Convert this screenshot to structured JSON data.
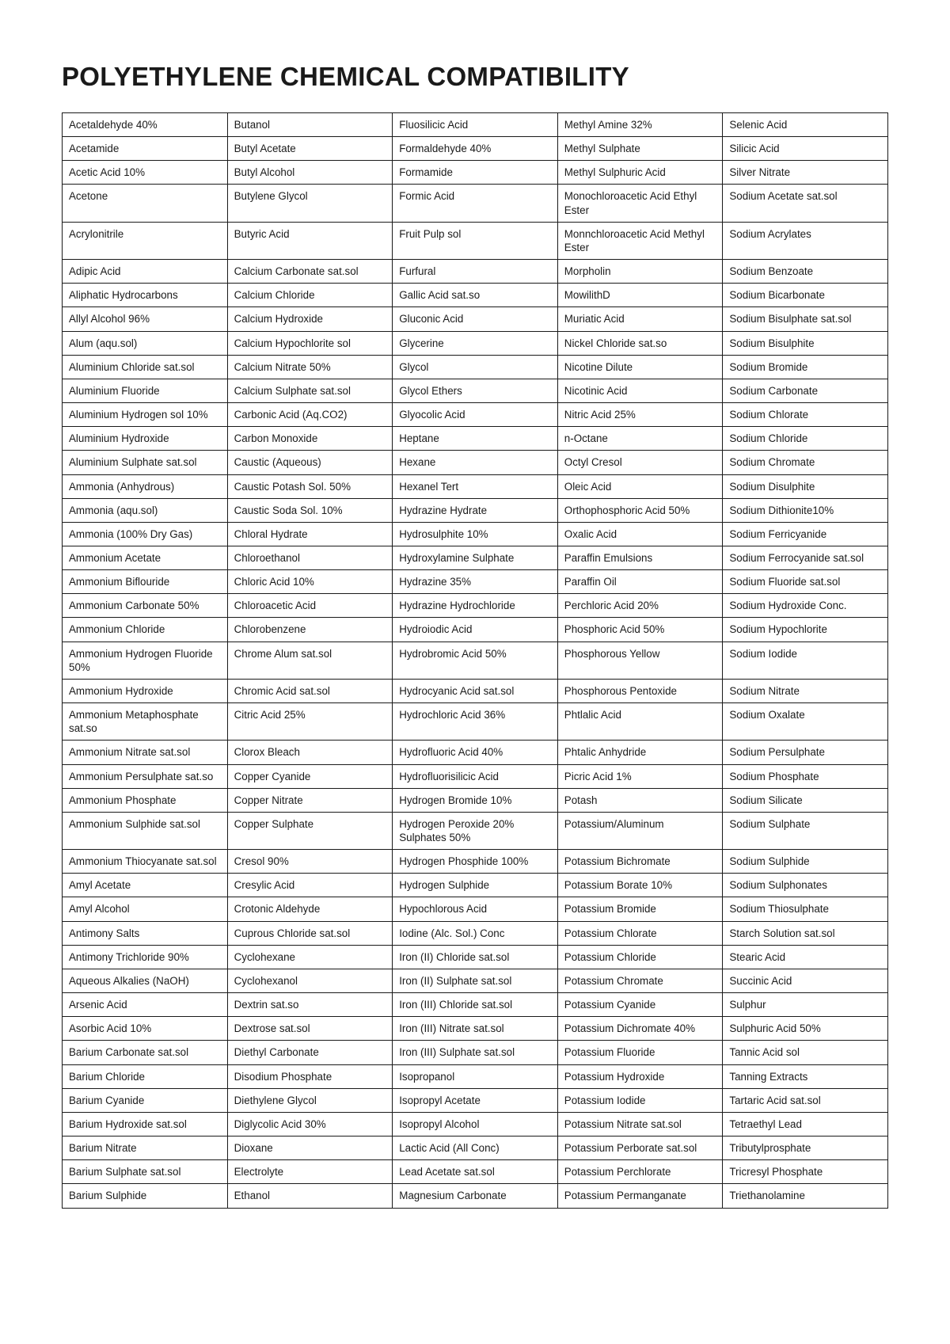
{
  "title": "POLYETHYLENE CHEMICAL COMPATIBILITY",
  "table": {
    "columns": 5,
    "column_widths_pct": [
      20,
      20,
      20,
      20,
      20
    ],
    "border_color": "#1a1a1a",
    "cell_font_size": 13.4,
    "text_color": "#1a1a1a",
    "rows": [
      [
        "Acetaldehyde 40%",
        "Butanol",
        "Fluosilicic Acid",
        "Methyl Amine 32%",
        "Selenic Acid"
      ],
      [
        "Acetamide",
        "Butyl Acetate",
        "Formaldehyde 40%",
        "Methyl Sulphate",
        "Silicic Acid"
      ],
      [
        "Acetic Acid 10%",
        "Butyl Alcohol",
        "Formamide",
        "Methyl Sulphuric Acid",
        "Silver Nitrate"
      ],
      [
        "Acetone",
        "Butylene Glycol",
        "Formic Acid",
        "Monochloroacetic Acid Ethyl Ester",
        "Sodium Acetate sat.sol"
      ],
      [
        "Acrylonitrile",
        "Butyric Acid",
        "Fruit Pulp sol",
        "Monnchloroacetic Acid Methyl Ester",
        "Sodium Acrylates"
      ],
      [
        "Adipic Acid",
        "Calcium Carbonate sat.sol",
        "Furfural",
        "Morpholin",
        "Sodium Benzoate"
      ],
      [
        "Aliphatic Hydrocarbons",
        "Calcium Chloride",
        "Gallic Acid sat.so",
        "MowilithD",
        "Sodium Bicarbonate"
      ],
      [
        "Allyl Alcohol 96%",
        "Calcium Hydroxide",
        "Gluconic Acid",
        "Muriatic Acid",
        "Sodium Bisulphate sat.sol"
      ],
      [
        "Alum (aqu.sol)",
        "Calcium Hypochlorite sol",
        "Glycerine",
        "Nickel Chloride sat.so",
        "Sodium Bisulphite"
      ],
      [
        "Aluminium Chloride sat.sol",
        "Calcium Nitrate 50%",
        "Glycol",
        "Nicotine Dilute",
        "Sodium Bromide"
      ],
      [
        "Aluminium Fluoride",
        "Calcium Sulphate sat.sol",
        "Glycol Ethers",
        "Nicotinic Acid",
        "Sodium Carbonate"
      ],
      [
        "Aluminium Hydrogen sol 10%",
        "Carbonic Acid (Aq.CO2)",
        "Glyocolic Acid",
        "Nitric Acid 25%",
        "Sodium Chlorate"
      ],
      [
        "Aluminium Hydroxide",
        "Carbon Monoxide",
        "Heptane",
        "n-Octane",
        "Sodium Chloride"
      ],
      [
        "Aluminium Sulphate sat.sol",
        "Caustic (Aqueous)",
        "Hexane",
        "Octyl Cresol",
        "Sodium Chromate"
      ],
      [
        "Ammonia (Anhydrous)",
        "Caustic Potash Sol. 50%",
        "Hexanel Tert",
        "Oleic Acid",
        "Sodium Disulphite"
      ],
      [
        "Ammonia (aqu.sol)",
        "Caustic Soda Sol. 10%",
        "Hydrazine Hydrate",
        "Orthophosphoric Acid 50%",
        "Sodium Dithionite10%"
      ],
      [
        "Ammonia (100% Dry Gas)",
        "Chloral Hydrate",
        "Hydrosulphite 10%",
        "Oxalic Acid",
        "Sodium Ferricyanide"
      ],
      [
        "Ammonium Acetate",
        "Chloroethanol",
        "Hydroxylamine Sulphate",
        "Paraffin Emulsions",
        "Sodium Ferrocyanide sat.sol"
      ],
      [
        "Ammonium Biflouride",
        "Chloric Acid 10%",
        "Hydrazine 35%",
        "Paraffin Oil",
        "Sodium Fluoride sat.sol"
      ],
      [
        "Ammonium Carbonate 50%",
        "Chloroacetic Acid",
        "Hydrazine Hydrochloride",
        "Perchloric Acid 20%",
        "Sodium Hydroxide Conc."
      ],
      [
        "Ammonium Chloride",
        "Chlorobenzene",
        "Hydroiodic Acid",
        "Phosphoric Acid 50%",
        "Sodium Hypochlorite"
      ],
      [
        "Ammonium Hydrogen Fluoride 50%",
        "Chrome Alum sat.sol",
        "Hydrobromic Acid 50%",
        "Phosphorous Yellow",
        "Sodium Iodide"
      ],
      [
        "Ammonium Hydroxide",
        "Chromic Acid sat.sol",
        "Hydrocyanic Acid sat.sol",
        "Phosphorous Pentoxide",
        "Sodium Nitrate"
      ],
      [
        "Ammonium Metaphosphate sat.so",
        "Citric Acid 25%",
        "Hydrochloric Acid 36%",
        "Phtlalic Acid",
        "Sodium Oxalate"
      ],
      [
        "Ammonium Nitrate sat.sol",
        "Clorox Bleach",
        "Hydrofluoric Acid 40%",
        "Phtalic Anhydride",
        "Sodium Persulphate"
      ],
      [
        "Ammonium Persulphate sat.so",
        "Copper Cyanide",
        "Hydrofluorisilicic Acid",
        "Picric Acid 1%",
        "Sodium Phosphate"
      ],
      [
        "Ammonium Phosphate",
        "Copper Nitrate",
        "Hydrogen Bromide 10%",
        "Potash",
        "Sodium Silicate"
      ],
      [
        "Ammonium Sulphide sat.sol",
        "Copper Sulphate",
        "Hydrogen Peroxide 20% Sulphates 50%",
        "Potassium/Aluminum",
        "Sodium Sulphate"
      ],
      [
        "Ammonium Thiocyanate sat.sol",
        "Cresol 90%",
        "Hydrogen Phosphide 100%",
        "Potassium Bichromate",
        "Sodium Sulphide"
      ],
      [
        "Amyl Acetate",
        "Cresylic Acid",
        "Hydrogen Sulphide",
        "Potassium Borate 10%",
        "Sodium Sulphonates"
      ],
      [
        "Amyl Alcohol",
        "Crotonic Aldehyde",
        "Hypochlorous Acid",
        "Potassium Bromide",
        "Sodium Thiosulphate"
      ],
      [
        "Antimony Salts",
        "Cuprous Chloride sat.sol",
        "Iodine (Alc. Sol.) Conc",
        "Potassium Chlorate",
        "Starch Solution sat.sol"
      ],
      [
        "Antimony Trichloride 90%",
        "Cyclohexane",
        "Iron (II) Chloride sat.sol",
        "Potassium Chloride",
        "Stearic Acid"
      ],
      [
        "Aqueous Alkalies (NaOH)",
        "Cyclohexanol",
        "Iron (II) Sulphate sat.sol",
        "Potassium Chromate",
        "Succinic Acid"
      ],
      [
        "Arsenic Acid",
        "Dextrin sat.so",
        "Iron (III) Chloride sat.sol",
        "Potassium Cyanide",
        "Sulphur"
      ],
      [
        "Asorbic Acid 10%",
        "Dextrose sat.sol",
        "Iron (III) Nitrate sat.sol",
        "Potassium Dichromate 40%",
        "Sulphuric Acid 50%"
      ],
      [
        "Barium Carbonate sat.sol",
        "Diethyl Carbonate",
        "Iron (III) Sulphate sat.sol",
        "Potassium Fluoride",
        "Tannic Acid sol"
      ],
      [
        "Barium Chloride",
        "Disodium Phosphate",
        "Isopropanol",
        "Potassium Hydroxide",
        "Tanning Extracts"
      ],
      [
        "Barium Cyanide",
        "Diethylene Glycol",
        "Isopropyl Acetate",
        "Potassium Iodide",
        "Tartaric Acid sat.sol"
      ],
      [
        "Barium Hydroxide sat.sol",
        "Diglycolic Acid 30%",
        "Isopropyl Alcohol",
        "Potassium Nitrate sat.sol",
        "Tetraethyl Lead"
      ],
      [
        "Barium Nitrate",
        "Dioxane",
        "Lactic Acid (All Conc)",
        "Potassium Perborate sat.sol",
        "Tributylprosphate"
      ],
      [
        "Barium Sulphate sat.sol",
        "Electrolyte",
        "Lead Acetate sat.sol",
        "Potassium Perchlorate",
        "Tricresyl Phosphate"
      ],
      [
        "Barium Sulphide",
        "Ethanol",
        "Magnesium Carbonate",
        "Potassium Permanganate",
        "Triethanolamine"
      ]
    ]
  }
}
